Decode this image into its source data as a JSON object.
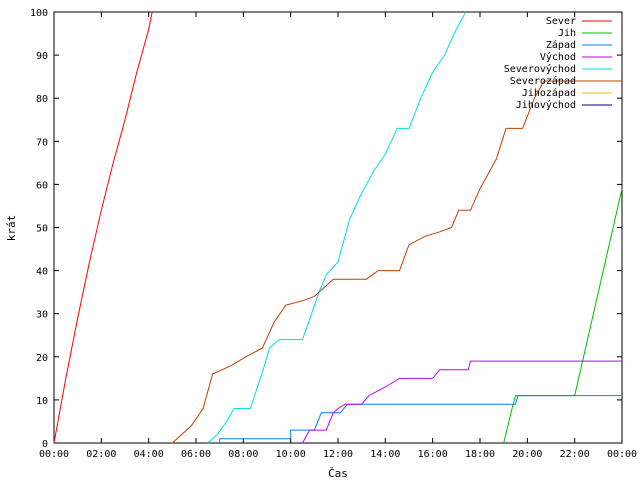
{
  "chart_data": {
    "type": "line",
    "title": "",
    "xlabel": "Čas",
    "ylabel": "krát",
    "xlim": [
      0,
      24
    ],
    "ylim": [
      0,
      100
    ],
    "x_ticks": [
      "00:00",
      "02:00",
      "04:00",
      "06:00",
      "08:00",
      "10:00",
      "12:00",
      "14:00",
      "16:00",
      "18:00",
      "20:00",
      "22:00",
      "00:00"
    ],
    "y_ticks": [
      "0",
      "10",
      "20",
      "30",
      "40",
      "50",
      "60",
      "70",
      "80",
      "90",
      "100"
    ],
    "grid": false,
    "legend_position": "top-right",
    "series": [
      {
        "name": "Sever",
        "color": "#ff0000",
        "points": [
          [
            0,
            0
          ],
          [
            0.5,
            15
          ],
          [
            1,
            29
          ],
          [
            1.5,
            42
          ],
          [
            2,
            54
          ],
          [
            2.5,
            65
          ],
          [
            3,
            75
          ],
          [
            3.5,
            86
          ],
          [
            4,
            96
          ],
          [
            4.15,
            100
          ]
        ]
      },
      {
        "name": "Jih",
        "color": "#00c000",
        "points": [
          [
            19,
            0
          ],
          [
            19.4,
            9
          ],
          [
            19.5,
            11
          ],
          [
            22,
            11
          ],
          [
            24,
            59
          ]
        ]
      },
      {
        "name": "Západ",
        "color": "#0080ff",
        "points": [
          [
            7,
            0
          ],
          [
            7,
            1
          ],
          [
            10,
            1
          ],
          [
            10,
            3
          ],
          [
            11,
            3
          ],
          [
            11.3,
            7
          ],
          [
            12.1,
            7
          ],
          [
            12.4,
            9
          ],
          [
            19.5,
            9
          ],
          [
            19.6,
            11
          ],
          [
            24,
            11
          ]
        ]
      },
      {
        "name": "Východ",
        "color": "#c000ff",
        "points": [
          [
            10.5,
            0
          ],
          [
            10.8,
            3
          ],
          [
            11.5,
            3
          ],
          [
            11.8,
            7
          ],
          [
            12,
            8
          ],
          [
            12.3,
            9
          ],
          [
            13,
            9
          ],
          [
            13.3,
            11
          ],
          [
            14,
            13
          ],
          [
            14.6,
            15
          ],
          [
            16,
            15
          ],
          [
            16.3,
            17
          ],
          [
            17.5,
            17
          ],
          [
            17.6,
            19
          ],
          [
            24,
            19
          ]
        ]
      },
      {
        "name": "Severovýchod",
        "color": "#00e0e0",
        "points": [
          [
            6.5,
            0
          ],
          [
            6.9,
            2
          ],
          [
            7.3,
            5
          ],
          [
            7.6,
            8
          ],
          [
            8.3,
            8
          ],
          [
            8.9,
            18
          ],
          [
            9.1,
            22
          ],
          [
            9.5,
            24
          ],
          [
            10.5,
            24
          ],
          [
            11.2,
            35
          ],
          [
            11.5,
            39
          ],
          [
            12,
            42
          ],
          [
            12.5,
            52
          ],
          [
            13,
            58
          ],
          [
            13.5,
            63
          ],
          [
            14,
            67
          ],
          [
            14.5,
            73
          ],
          [
            15,
            73
          ],
          [
            15.5,
            80
          ],
          [
            16,
            86
          ],
          [
            16.5,
            90
          ],
          [
            17,
            96
          ],
          [
            17.4,
            100
          ]
        ]
      },
      {
        "name": "Severozápad",
        "color": "#c04000",
        "points": [
          [
            5,
            0
          ],
          [
            5.4,
            2
          ],
          [
            5.8,
            4
          ],
          [
            6.3,
            8
          ],
          [
            6.7,
            16
          ],
          [
            7.5,
            18
          ],
          [
            8.1,
            20
          ],
          [
            8.8,
            22
          ],
          [
            9.3,
            28
          ],
          [
            9.8,
            32
          ],
          [
            10.5,
            33
          ],
          [
            11,
            34
          ],
          [
            11.8,
            38
          ],
          [
            13.2,
            38
          ],
          [
            13.7,
            40
          ],
          [
            14.6,
            40
          ],
          [
            15,
            46
          ],
          [
            15.7,
            48
          ],
          [
            16.3,
            49
          ],
          [
            16.8,
            50
          ],
          [
            17.1,
            54
          ],
          [
            17.6,
            54
          ],
          [
            18,
            59
          ],
          [
            18.7,
            66
          ],
          [
            19.1,
            73
          ],
          [
            19.8,
            73
          ],
          [
            20.3,
            80
          ],
          [
            20.7,
            84
          ],
          [
            24,
            84
          ]
        ]
      },
      {
        "name": "Jihozápad",
        "color": "#e0c000",
        "points": []
      },
      {
        "name": "Jihovýchod",
        "color": "#000080",
        "points": []
      }
    ]
  }
}
